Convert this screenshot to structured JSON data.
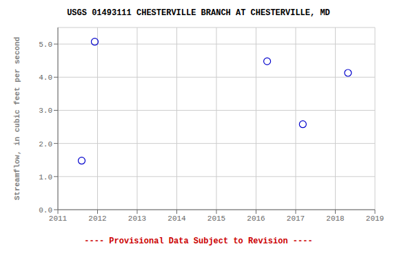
{
  "chart_data": {
    "type": "scatter",
    "title": "USGS 01493111 CHESTERVILLE BRANCH AT CHESTERVILLE, MD",
    "ylabel": "Streamflow, in cubic feet per second",
    "x": [
      2011.6,
      2011.93,
      2016.28,
      2017.18,
      2018.32
    ],
    "values": [
      1.48,
      5.07,
      4.48,
      2.58,
      4.13
    ],
    "xlim": [
      2011,
      2019
    ],
    "ylim": [
      0.0,
      5.5
    ],
    "xticks": [
      2011,
      2012,
      2013,
      2014,
      2015,
      2016,
      2017,
      2018,
      2019
    ],
    "yticks": [
      {
        "value": 0.0,
        "label": "0.0"
      },
      {
        "value": 1.0,
        "label": "1.0"
      },
      {
        "value": 2.0,
        "label": "2.0"
      },
      {
        "value": 3.0,
        "label": "3.0"
      },
      {
        "value": 4.0,
        "label": "4.0"
      },
      {
        "value": 5.0,
        "label": "5.0"
      }
    ],
    "color": "#0000cc",
    "marker": "circle",
    "grid": true,
    "annotations": [
      {
        "text": "---- Provisional Data Subject to Revision ----",
        "color": "#cc0000"
      }
    ]
  }
}
